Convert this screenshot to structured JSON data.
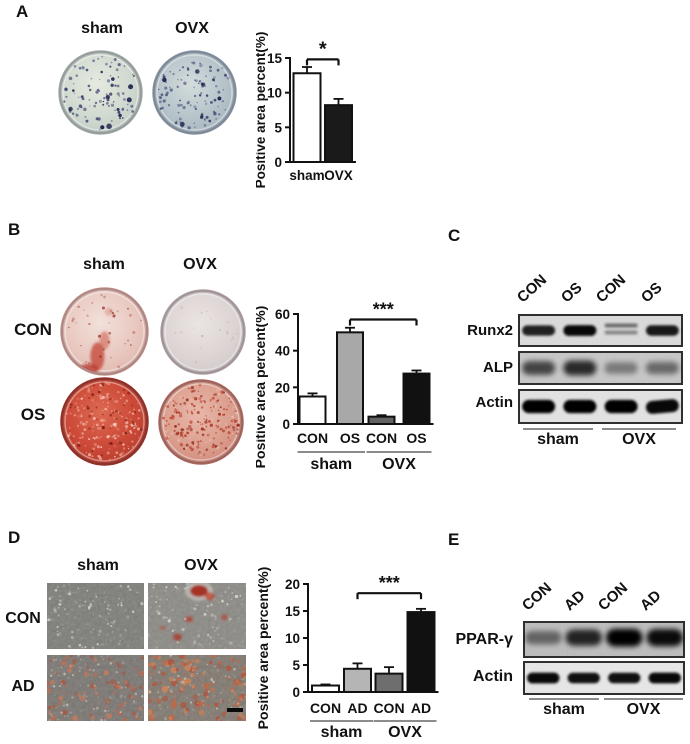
{
  "figure_bg": "#ffffff",
  "panels": {
    "a": {
      "label": "A",
      "col_headers": [
        "sham",
        "OVX"
      ]
    },
    "b": {
      "label": "B",
      "col_headers": [
        "sham",
        "OVX"
      ],
      "row_labels": [
        "CON",
        "OS"
      ]
    },
    "c": {
      "label": "C",
      "lane_labels": [
        "CON",
        "OS",
        "CON",
        "OS"
      ],
      "blot_rows": [
        {
          "name": "Runx2",
          "bands": [
            0.8,
            0.95,
            0.4,
            0.85
          ]
        },
        {
          "name": "ALP",
          "bands": [
            0.55,
            0.72,
            0.18,
            0.3
          ]
        },
        {
          "name": "Actin",
          "bands": [
            1.0,
            1.0,
            1.0,
            0.95
          ]
        }
      ],
      "group_labels": [
        "sham",
        "OVX"
      ]
    },
    "d": {
      "label": "D",
      "col_headers": [
        "sham",
        "OVX"
      ],
      "row_labels": [
        "CON",
        "AD"
      ]
    },
    "e": {
      "label": "E",
      "lane_labels": [
        "CON",
        "AD",
        "CON",
        "AD"
      ],
      "blot_rows": [
        {
          "name": "PPAR-γ",
          "bands": [
            0.3,
            0.75,
            1.0,
            0.92
          ]
        },
        {
          "name": "Actin",
          "bands": [
            0.95,
            0.9,
            0.9,
            0.95
          ]
        }
      ],
      "group_labels": [
        "sham",
        "OVX"
      ]
    }
  },
  "chart_data": [
    {
      "id": "A",
      "type": "bar",
      "panel": "A",
      "ylabel": "Positive area percent(%)",
      "categories": [
        "sham",
        "OVX"
      ],
      "values": [
        12.8,
        8.2
      ],
      "errors": [
        0.9,
        0.9
      ],
      "bar_colors": [
        "#ffffff",
        "#1a1a1a"
      ],
      "ylim": [
        0,
        15
      ],
      "yticks": [
        0,
        5,
        10,
        15
      ],
      "grid": false,
      "significance": {
        "label": "*",
        "from": 0,
        "to": 1,
        "y": 14.8
      }
    },
    {
      "id": "B",
      "type": "bar",
      "panel": "B",
      "ylabel": "Positive area percent(%)",
      "categories": [
        "CON",
        "OS",
        "CON",
        "OS"
      ],
      "values": [
        15,
        50,
        4,
        27.5
      ],
      "errors": [
        1.7,
        2.5,
        0.8,
        1.7
      ],
      "bar_colors": [
        "#ffffff",
        "#a8a8a8",
        "#636363",
        "#111111"
      ],
      "ylim": [
        0,
        60
      ],
      "yticks": [
        0,
        20,
        40,
        60
      ],
      "grid": false,
      "groups": [
        {
          "label": "sham",
          "from": 0,
          "to": 1
        },
        {
          "label": "OVX",
          "from": 2,
          "to": 3
        }
      ],
      "significance": {
        "label": "***",
        "from": 1,
        "to": 3,
        "y": 57
      }
    },
    {
      "id": "D",
      "type": "bar",
      "panel": "D",
      "ylabel": "Positive area percent(%)",
      "categories": [
        "CON",
        "AD",
        "CON",
        "AD"
      ],
      "values": [
        1.2,
        4.3,
        3.4,
        14.8
      ],
      "errors": [
        0.2,
        1.0,
        1.2,
        0.6
      ],
      "bar_colors": [
        "#ffffff",
        "#b5b5b5",
        "#6e6e6e",
        "#111111"
      ],
      "ylim": [
        0,
        20
      ],
      "yticks": [
        0,
        5,
        10,
        15,
        20
      ],
      "grid": false,
      "groups": [
        {
          "label": "sham",
          "from": 0,
          "to": 1
        },
        {
          "label": "OVX",
          "from": 2,
          "to": 3
        }
      ],
      "significance": {
        "label": "***",
        "from": 1,
        "to": 3,
        "y": 18.3
      }
    }
  ]
}
